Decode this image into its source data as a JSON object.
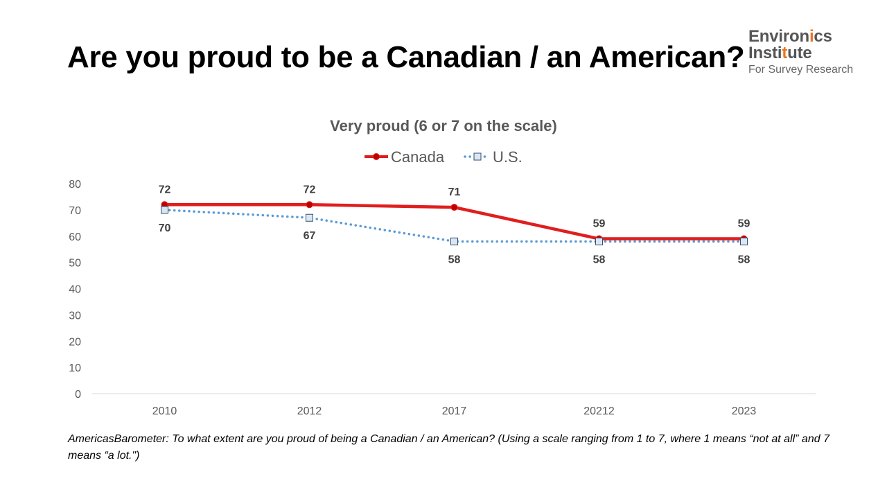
{
  "title": "Are you proud to be a Canadian / an American?",
  "logo": {
    "line1_pre": "Environ",
    "line1_accent": "i",
    "line1_post": "cs",
    "line2_pre": "Insti",
    "line2_accent": "t",
    "line2_post": "ute",
    "line3": "For Survey Research"
  },
  "colors": {
    "canada": "#e01e1e",
    "us": "#5b9bd5",
    "marker_canada": "#c00000",
    "us_marker_fill": "#dce6f2",
    "us_marker_stroke": "#2f4f6f",
    "axis_text": "#595959",
    "label_text": "#404040",
    "logo_accent": "#e87722"
  },
  "chart_data": {
    "type": "line",
    "title": "Very proud (6 or 7 on the scale)",
    "xlabel": "",
    "ylabel": "",
    "categories": [
      "2010",
      "2012",
      "2017",
      "20212",
      "2023"
    ],
    "ylim": [
      0,
      80
    ],
    "yticks": [
      "0",
      "10",
      "20",
      "30",
      "40",
      "50",
      "60",
      "70",
      "80"
    ],
    "grid": false,
    "legend_position": "top",
    "series": [
      {
        "name": "Canada",
        "values": [
          72,
          72,
          71,
          59,
          59
        ],
        "labels": [
          "72",
          "72",
          "71",
          "59",
          "59"
        ],
        "style": "solid",
        "marker": "circle"
      },
      {
        "name": "U.S.",
        "values": [
          70,
          67,
          58,
          58,
          58
        ],
        "labels": [
          "70",
          "67",
          "58",
          "58",
          "58"
        ],
        "style": "dotted",
        "marker": "square"
      }
    ]
  },
  "footnote": "AmericasBarometer: To what extent are you proud of being a Canadian / an American? (Using a scale ranging from 1 to 7, where 1 means “not at all” and 7 means “a lot.\")"
}
